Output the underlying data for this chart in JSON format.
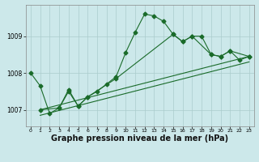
{
  "bg_color": "#cce8ea",
  "grid_color": "#aacccc",
  "line_color": "#1a6b2a",
  "xlabel": "Graphe pression niveau de la mer (hPa)",
  "xlabel_fontsize": 7,
  "ylabel_values": [
    1007,
    1008,
    1009
  ],
  "xlim": [
    -0.5,
    23.5
  ],
  "ylim": [
    1006.55,
    1009.85
  ],
  "xticks": [
    0,
    1,
    2,
    3,
    4,
    5,
    6,
    7,
    8,
    9,
    10,
    11,
    12,
    13,
    14,
    15,
    16,
    17,
    18,
    19,
    20,
    21,
    22,
    23
  ],
  "series1_x": [
    0,
    1,
    2,
    3,
    4,
    5,
    6,
    7,
    8,
    9,
    10,
    11,
    12,
    13,
    14,
    15,
    16,
    17,
    18,
    19,
    20,
    21,
    22,
    23
  ],
  "series1_y": [
    1008.0,
    1007.65,
    1006.9,
    1007.05,
    1007.55,
    1007.1,
    1007.35,
    1007.5,
    1007.7,
    1007.9,
    1008.55,
    1009.1,
    1009.6,
    1009.55,
    1009.4,
    1009.05,
    1008.85,
    1009.0,
    1009.0,
    1008.5,
    1008.45,
    1008.6,
    1008.35,
    1008.45
  ],
  "series2_x": [
    1,
    23
  ],
  "series2_y": [
    1007.0,
    1008.45
  ],
  "series3_x": [
    1,
    23
  ],
  "series3_y": [
    1006.85,
    1008.3
  ],
  "series4_x": [
    1,
    3,
    4,
    5,
    6,
    9,
    15,
    16,
    17,
    19,
    20,
    21,
    23
  ],
  "series4_y": [
    1007.0,
    1007.05,
    1007.5,
    1007.1,
    1007.35,
    1007.85,
    1009.05,
    1008.85,
    1009.0,
    1008.5,
    1008.45,
    1008.6,
    1008.45
  ]
}
